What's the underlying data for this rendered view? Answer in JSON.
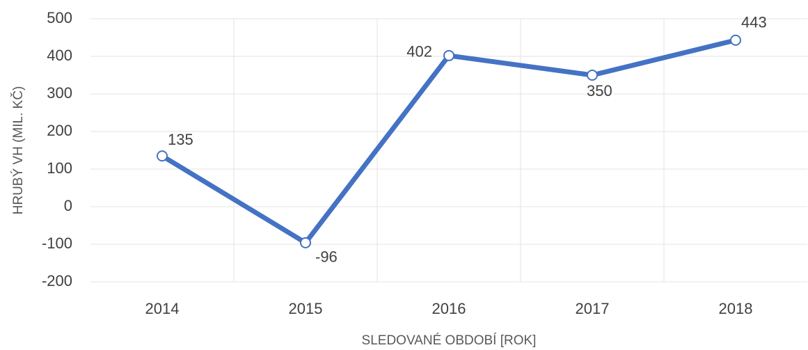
{
  "chart_data": {
    "type": "line",
    "y_axis_label": "HRUBÝ VH (MIL. KČ)",
    "x_axis_label": "SLEDOVANÉ OBDOBÍ [ROK]",
    "categories": [
      "2014",
      "2015",
      "2016",
      "2017",
      "2018"
    ],
    "values": [
      135,
      -96,
      402,
      350,
      443
    ],
    "color": "#4472c4",
    "ylim": [
      -200,
      500
    ],
    "yticks": [
      -200,
      -100,
      0,
      100,
      200,
      300,
      400,
      500
    ],
    "grid": true
  }
}
